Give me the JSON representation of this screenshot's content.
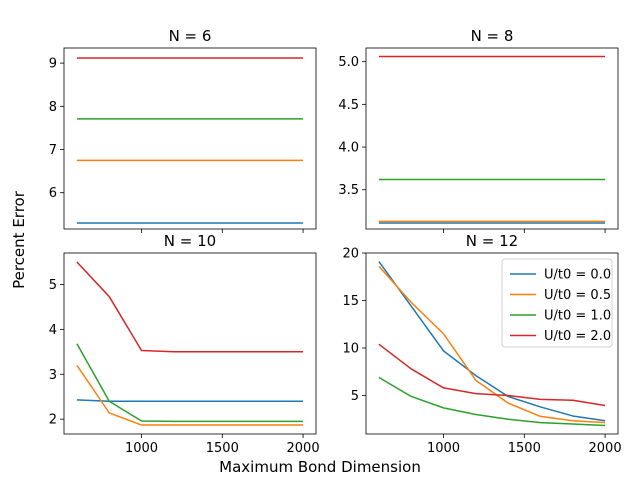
{
  "colors": {
    "s0": "#1f77b4",
    "s1": "#ff7f0e",
    "s2": "#2ca02c",
    "s3": "#d62728"
  },
  "figure": {
    "xlabel": "Maximum Bond Dimension",
    "ylabel": "Percent Error"
  },
  "chart_data": [
    {
      "type": "line",
      "title": "N = 6",
      "x": [
        600,
        800,
        1000,
        1200,
        1400,
        1600,
        1800,
        2000
      ],
      "xlim": [
        520,
        2080
      ],
      "ylim": [
        5.16,
        9.35
      ],
      "yticks": [
        6,
        7,
        8,
        9
      ],
      "xticks": [
        1000,
        1500,
        2000
      ],
      "show_xticklabels": false,
      "series": [
        {
          "values": [
            5.3,
            5.3,
            5.3,
            5.3,
            5.3,
            5.3,
            5.3,
            5.3
          ]
        },
        {
          "values": [
            6.75,
            6.75,
            6.75,
            6.75,
            6.75,
            6.75,
            6.75,
            6.75
          ]
        },
        {
          "values": [
            7.71,
            7.71,
            7.71,
            7.71,
            7.71,
            7.71,
            7.71,
            7.71
          ]
        },
        {
          "values": [
            9.12,
            9.12,
            9.12,
            9.12,
            9.12,
            9.12,
            9.12,
            9.12
          ]
        }
      ]
    },
    {
      "type": "line",
      "title": "N = 8",
      "x": [
        600,
        800,
        1000,
        1200,
        1400,
        1600,
        1800,
        2000
      ],
      "xlim": [
        520,
        2080
      ],
      "ylim": [
        3.04,
        5.16
      ],
      "yticks": [
        3.5,
        4.0,
        4.5,
        5.0
      ],
      "ytick_labels": [
        "3.5",
        "4.0",
        "4.5",
        "5.0"
      ],
      "xticks": [
        1000,
        1500,
        2000
      ],
      "show_xticklabels": false,
      "series": [
        {
          "values": [
            3.11,
            3.11,
            3.11,
            3.11,
            3.11,
            3.11,
            3.11,
            3.11
          ]
        },
        {
          "values": [
            3.13,
            3.13,
            3.13,
            3.13,
            3.13,
            3.13,
            3.13,
            3.13
          ]
        },
        {
          "values": [
            3.62,
            3.62,
            3.62,
            3.62,
            3.62,
            3.62,
            3.62,
            3.62
          ]
        },
        {
          "values": [
            5.06,
            5.06,
            5.06,
            5.06,
            5.06,
            5.06,
            5.06,
            5.06
          ]
        }
      ]
    },
    {
      "type": "line",
      "title": "N = 10",
      "x": [
        600,
        800,
        1000,
        1200,
        1400,
        1600,
        1800,
        2000
      ],
      "xlim": [
        520,
        2080
      ],
      "ylim": [
        1.67,
        5.7
      ],
      "yticks": [
        2,
        3,
        4,
        5
      ],
      "xticks": [
        1000,
        1500,
        2000
      ],
      "show_xticklabels": true,
      "series": [
        {
          "values": [
            2.43,
            2.4,
            2.4,
            2.4,
            2.4,
            2.4,
            2.4,
            2.4
          ]
        },
        {
          "values": [
            3.2,
            2.14,
            1.87,
            1.87,
            1.87,
            1.87,
            1.87,
            1.87
          ]
        },
        {
          "values": [
            3.68,
            2.4,
            1.96,
            1.95,
            1.95,
            1.95,
            1.95,
            1.95
          ]
        },
        {
          "values": [
            5.5,
            4.73,
            3.53,
            3.5,
            3.5,
            3.5,
            3.5,
            3.5
          ]
        }
      ]
    },
    {
      "type": "line",
      "title": "N = 12",
      "x": [
        600,
        800,
        1000,
        1200,
        1400,
        1600,
        1800,
        2000
      ],
      "xlim": [
        520,
        2080
      ],
      "ylim": [
        0.95,
        20.0
      ],
      "yticks": [
        5,
        10,
        15,
        20
      ],
      "xticks": [
        1000,
        1500,
        2000
      ],
      "show_xticklabels": true,
      "legend": "upper right",
      "series": [
        {
          "name": "U/t0 = 0.0",
          "values": [
            19.1,
            14.4,
            9.7,
            7.1,
            4.9,
            3.8,
            2.85,
            2.35
          ]
        },
        {
          "name": "U/t0 = 0.5",
          "values": [
            18.6,
            14.8,
            11.5,
            6.6,
            4.2,
            2.8,
            2.35,
            2.15
          ]
        },
        {
          "name": "U/t0 = 1.0",
          "values": [
            6.9,
            4.9,
            3.7,
            3.0,
            2.5,
            2.15,
            2.0,
            1.85
          ]
        },
        {
          "name": "U/t0 = 2.0",
          "values": [
            10.4,
            7.8,
            5.8,
            5.2,
            5.0,
            4.6,
            4.5,
            3.95
          ]
        }
      ]
    }
  ]
}
